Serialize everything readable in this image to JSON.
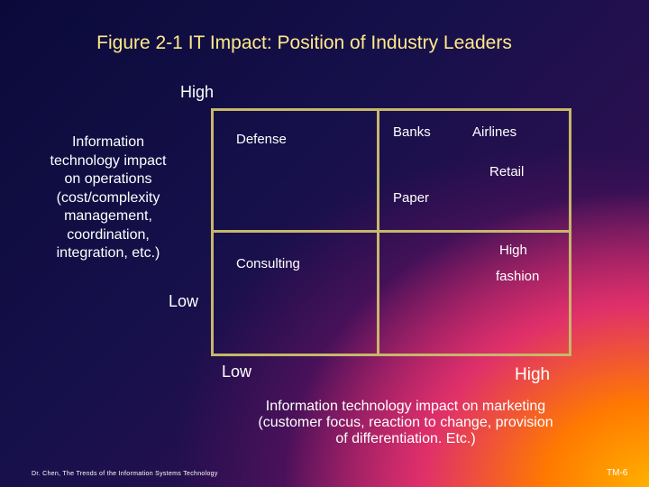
{
  "title": "Figure 2-1 IT Impact: Position of Industry Leaders",
  "y_axis": {
    "high": "High",
    "low": "Low",
    "label_lines": [
      "Information",
      "technology impact",
      "on operations",
      "(cost/complexity",
      "management,",
      "coordination,",
      "integration, etc.)"
    ]
  },
  "x_axis": {
    "low": "Low",
    "high": "High",
    "label_lines": [
      "Information technology impact on marketing",
      "(customer focus, reaction to change, provision",
      "of differentiation. Etc.)"
    ]
  },
  "quadrant_items": {
    "defense": "Defense",
    "banks": "Banks",
    "airlines": "Airlines",
    "retail": "Retail",
    "paper": "Paper",
    "consulting": "Consulting",
    "high_fashion_1": "High",
    "high_fashion_2": "fashion"
  },
  "footer": "Dr. Chen, The Trends of the Information Systems Technology",
  "page_number": "TM-6"
}
